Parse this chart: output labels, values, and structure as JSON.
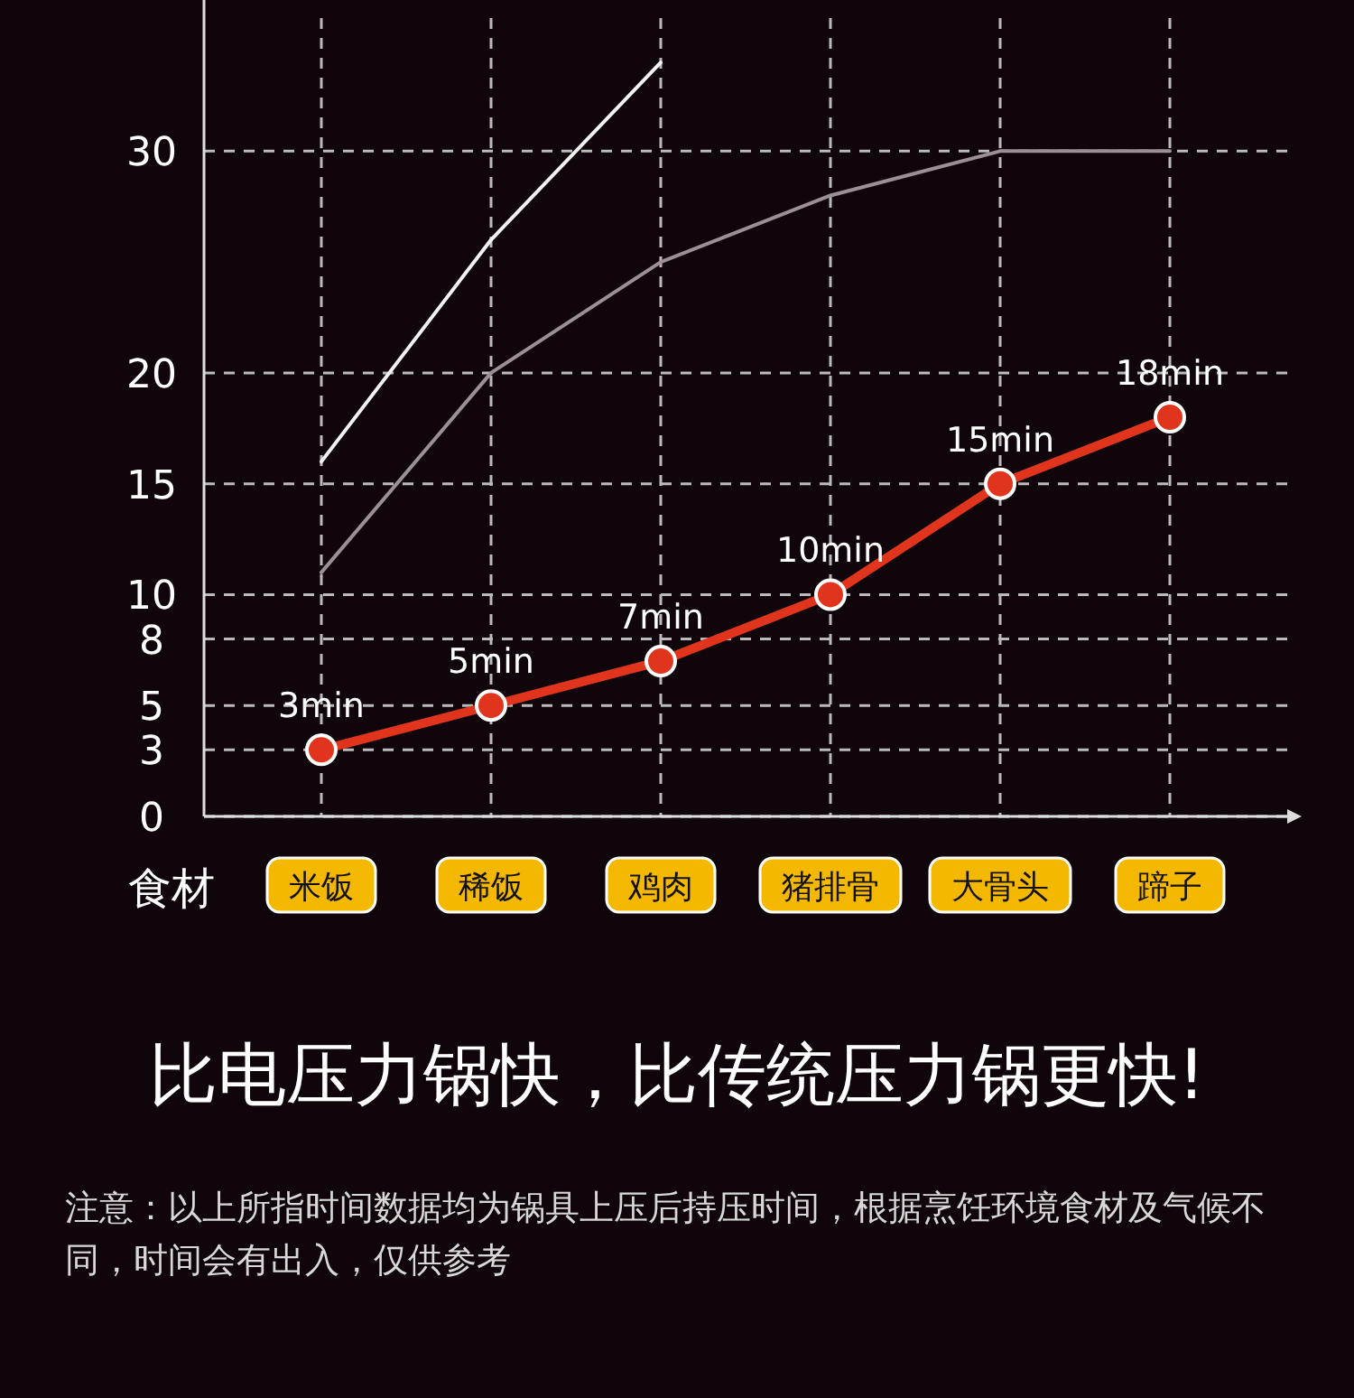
{
  "chart_data": {
    "type": "line",
    "title": "比电压力锅快，比传统压力锅更快!",
    "xlabel": "食材",
    "categories": [
      "米饭",
      "稀饭",
      "鸡肉",
      "猪排骨",
      "大骨头",
      "蹄子"
    ],
    "series": [
      {
        "color": "#f2f2f2",
        "values": [
          16,
          26,
          34,
          null,
          null,
          null
        ]
      },
      {
        "color": "#9a9096",
        "values": [
          11,
          20,
          25,
          28,
          30,
          30
        ]
      },
      {
        "color": "#e0351c",
        "values": [
          3,
          5,
          7,
          10,
          15,
          18
        ],
        "value_labels": [
          "3min",
          "5min",
          "7min",
          "10min",
          "15min",
          "18min"
        ],
        "marker": "circle"
      }
    ],
    "ylim": [
      0,
      36
    ],
    "yticks": [
      0,
      3,
      5,
      8,
      10,
      15,
      20,
      30
    ],
    "grid": true,
    "annotations": [
      "注意：以上所指时间数据均为锅具上压后持压时间，根据烹饪环境食材及气候不同，时间会有出入，仅供参考"
    ]
  }
}
